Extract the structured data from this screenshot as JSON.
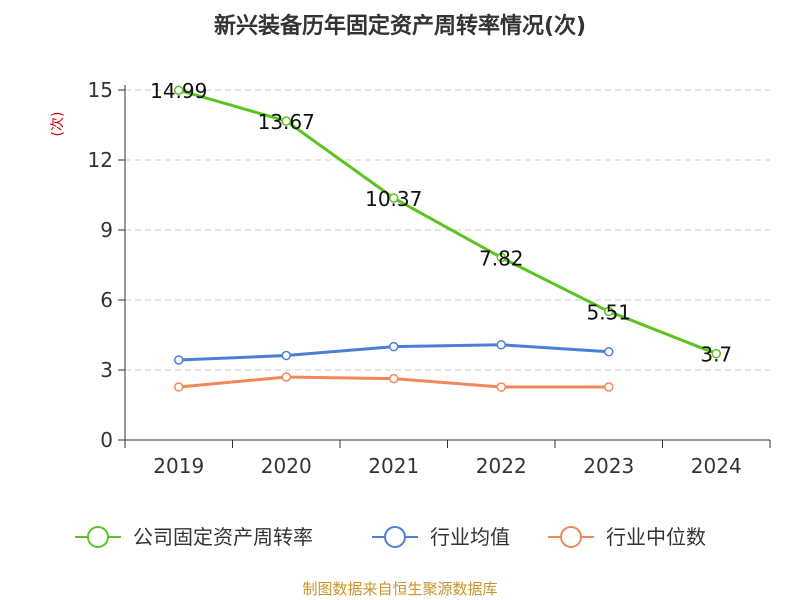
{
  "chart_data": {
    "type": "line",
    "title": "新兴装备历年固定资产周转率情况(次)",
    "ylabel": "(次)",
    "xlabel": "",
    "categories": [
      "2019",
      "2020",
      "2021",
      "2022",
      "2023",
      "2024"
    ],
    "ylim": [
      0,
      15
    ],
    "yticks": [
      0,
      3,
      6,
      9,
      12,
      15
    ],
    "grid": "horizontal dashed",
    "legend_position": "bottom",
    "series": [
      {
        "name": "公司固定资产周转率",
        "color": "#5cc41e",
        "values": [
          14.99,
          13.67,
          10.37,
          7.82,
          5.51,
          3.7
        ],
        "labels": [
          "14.99",
          "13.67",
          "10.37",
          "7.82",
          "5.51",
          "3.7"
        ]
      },
      {
        "name": "行业均值",
        "color": "#4a7fd6",
        "values": [
          3.43,
          3.62,
          4.0,
          4.08,
          3.78,
          null
        ]
      },
      {
        "name": "行业中位数",
        "color": "#f0885a",
        "values": [
          2.27,
          2.7,
          2.63,
          2.27,
          2.27,
          null
        ]
      }
    ]
  },
  "source_text": "制图数据来自恒生聚源数据库"
}
